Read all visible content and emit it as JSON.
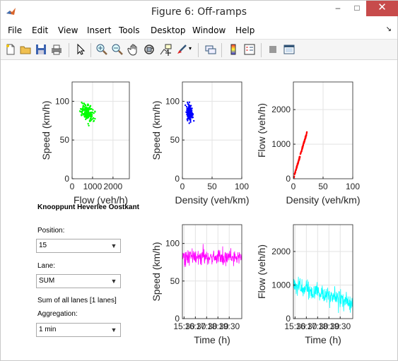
{
  "window": {
    "title": "Figure 6: Off-ramps",
    "min_glyph": "–",
    "max_glyph": "□",
    "close_glyph": "✕",
    "menu_corner_glyph": "↘"
  },
  "menubar": {
    "items": [
      "File",
      "Edit",
      "View",
      "Insert",
      "Tools",
      "Desktop",
      "Window",
      "Help"
    ]
  },
  "toolbar": {
    "tools": [
      "new-figure-icon",
      "open-file-icon",
      "save-icon",
      "print-icon",
      "pointer-icon",
      "zoom-in-icon",
      "zoom-out-icon",
      "pan-icon",
      "rotate-3d-icon",
      "data-cursor-icon",
      "brush-icon",
      "link-plot-icon",
      "colorbar-icon",
      "legend-icon",
      "hide-plot-tools-icon",
      "show-plot-tools-icon"
    ]
  },
  "controls": {
    "panel_title": "Knooppunt Heverlee Oostkant",
    "position_label": "Position:",
    "position_value": "15",
    "lane_label": "Lane:",
    "lane_value": "SUM",
    "lanes_info": "Sum of all lanes [1 lanes]",
    "aggregation_label": "Aggregation:",
    "aggregation_value": "1 min"
  },
  "chart_data": [
    {
      "id": "flow-speed",
      "type": "scatter",
      "xlabel": "Flow (veh/h)",
      "ylabel": "Speed (km/h)",
      "xlim": [
        0,
        2800
      ],
      "ylim": [
        0,
        125
      ],
      "xticks": [
        "0",
        "1000",
        "2000"
      ],
      "yticks": [
        "0",
        "50",
        "100"
      ],
      "grid": true,
      "color": "#00ff00",
      "x_range": [
        100,
        1400
      ],
      "y_range": [
        60,
        110
      ],
      "points": 200
    },
    {
      "id": "density-speed",
      "type": "scatter",
      "xlabel": "Density (veh/km)",
      "ylabel": "Speed (km/h)",
      "xlim": [
        0,
        100
      ],
      "ylim": [
        0,
        125
      ],
      "xticks": [
        "0",
        "50",
        "100"
      ],
      "yticks": [
        "0",
        "50",
        "100"
      ],
      "grid": true,
      "color": "#0000ff",
      "x_range": [
        1,
        23
      ],
      "y_range": [
        60,
        110
      ],
      "points": 150
    },
    {
      "id": "density-flow",
      "type": "scatter",
      "xlabel": "Density (veh/km)",
      "ylabel": "Flow (veh/h)",
      "xlim": [
        0,
        100
      ],
      "ylim": [
        0,
        2800
      ],
      "xticks": [
        "0",
        "50",
        "100"
      ],
      "yticks": [
        "0",
        "1000",
        "2000"
      ],
      "grid": true,
      "color": "#ff0000",
      "x_range": [
        0,
        23
      ],
      "y_range": [
        0,
        1350
      ],
      "points": 120
    },
    {
      "id": "time-speed",
      "type": "line",
      "xlabel": "Time (h)",
      "ylabel": "Speed (km/h)",
      "xlim": [
        0,
        100
      ],
      "ylim": [
        0,
        125
      ],
      "xticks": [
        "15:30",
        "16:30",
        "17:30",
        "18:30",
        "19:30"
      ],
      "yticks": [
        "0",
        "50",
        "100"
      ],
      "grid": true,
      "color": "#ff00ff",
      "mean": 82,
      "noise": 9,
      "points": 250
    },
    {
      "id": "time-flow",
      "type": "line",
      "xlabel": "Time (h)",
      "ylabel": "Flow (veh/h)",
      "xlim": [
        0,
        100
      ],
      "ylim": [
        0,
        2800
      ],
      "xticks": [
        "15:30",
        "16:30",
        "17:30",
        "18:30",
        "19:30"
      ],
      "yticks": [
        "0",
        "1000",
        "2000"
      ],
      "grid": true,
      "color": "#00ffff",
      "mean_start": 1000,
      "mean_end": 450,
      "noise": 230,
      "points": 250
    }
  ]
}
